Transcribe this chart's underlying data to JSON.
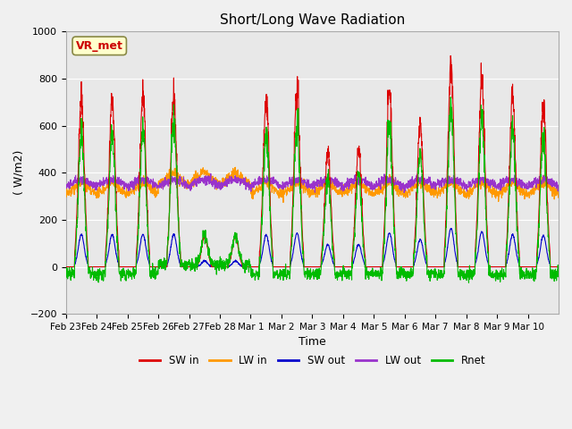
{
  "title": "Short/Long Wave Radiation",
  "xlabel": "Time",
  "ylabel": "( W/m2)",
  "station_label": "VR_met",
  "ylim": [
    -200,
    1000
  ],
  "yticks": [
    -200,
    0,
    200,
    400,
    600,
    800,
    1000
  ],
  "colors": {
    "SW_in": "#dd0000",
    "LW_in": "#ff9900",
    "SW_out": "#0000cc",
    "LW_out": "#9933cc",
    "Rnet": "#00bb00"
  },
  "legend_labels": [
    "SW in",
    "LW in",
    "SW out",
    "LW out",
    "Rnet"
  ],
  "xtick_labels": [
    "Feb 23",
    "Feb 24",
    "Feb 25",
    "Feb 26",
    "Feb 27",
    "Feb 28",
    "Mar 1",
    "Mar 2",
    "Mar 3",
    "Mar 4",
    "Mar 5",
    "Mar 6",
    "Mar 7",
    "Mar 8",
    "Mar 9",
    "Mar 10"
  ],
  "n_days": 16,
  "background_color": "#f0f0f0",
  "plot_bg_color": "#e8e8e8"
}
